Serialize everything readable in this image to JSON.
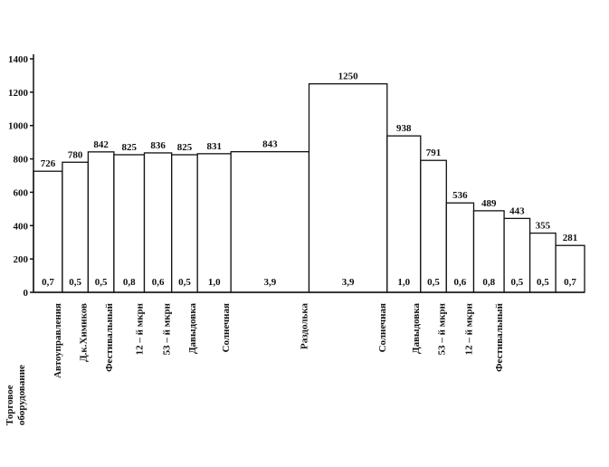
{
  "chart_data": {
    "type": "variable-width-bar",
    "x_label": [
      "Торговое",
      "оборудование"
    ],
    "categories": [
      "Автоуправления",
      "Д.к.Химиков",
      "Фестивальный",
      "12 – й мкрн",
      "53 – й мкрн",
      "Давыдовка",
      "Солнечная",
      "Раздолька",
      "Солнечная",
      "Давыдовка",
      "53 – й мкрн",
      "12 – й мкрн",
      "Фестивальный",
      null,
      null,
      null
    ],
    "values": [
      726,
      780,
      842,
      825,
      836,
      825,
      831,
      843,
      1250,
      938,
      791,
      536,
      489,
      443,
      355,
      281
    ],
    "widths": [
      0.7,
      0.5,
      0.5,
      0.8,
      0.6,
      0.5,
      1.0,
      3.9,
      3.9,
      1.0,
      0.5,
      0.6,
      0.8,
      0.5,
      0.5,
      0.7
    ],
    "width_labels": [
      "0,7",
      "0,5",
      "0,5",
      "0,8",
      "0,6",
      "0,5",
      "1,0",
      "3,9",
      "3,9",
      "1,0",
      "0,5",
      "0,6",
      "0,8",
      "0,5",
      "0,5",
      "0,7"
    ],
    "color": "#ffffff",
    "ylim": [
      0,
      1400
    ],
    "yticks": [
      0,
      200,
      400,
      600,
      800,
      1000,
      1200,
      1400
    ],
    "grid": false
  }
}
